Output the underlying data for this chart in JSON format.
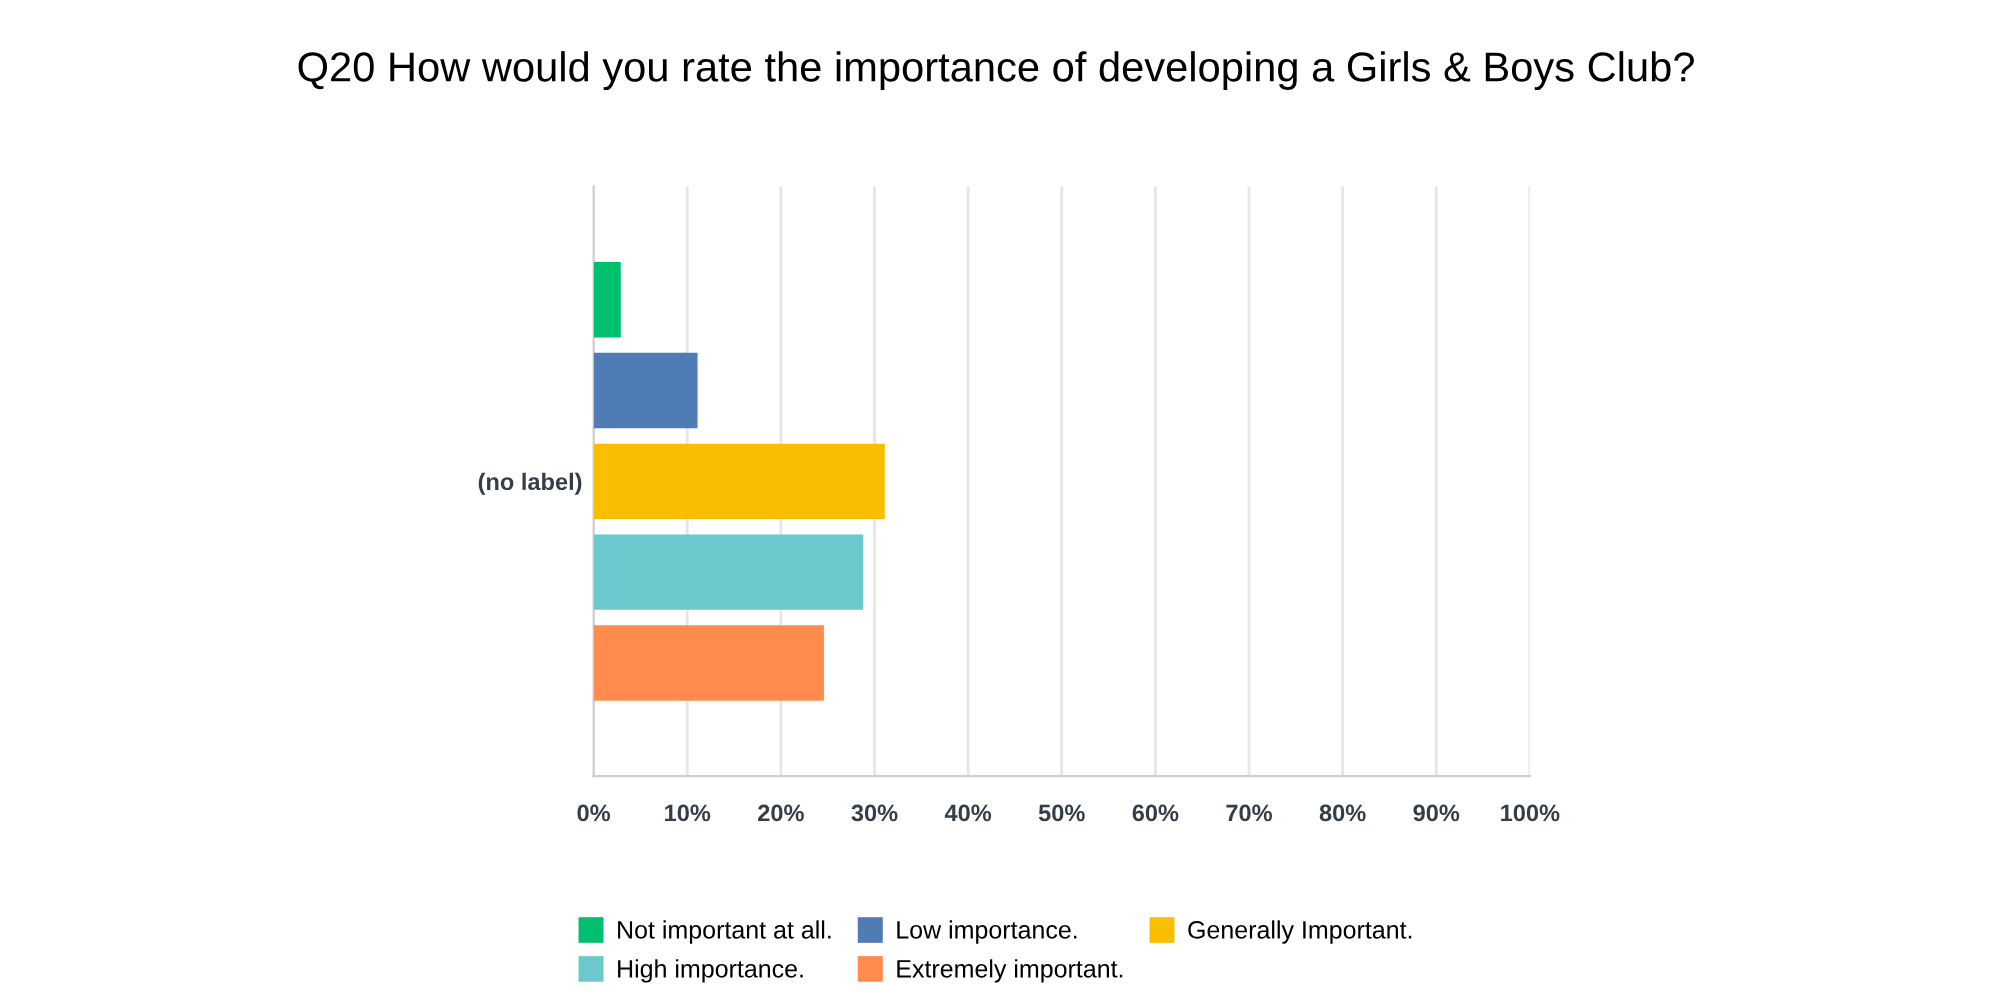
{
  "chart_data": {
    "type": "bar",
    "orientation": "horizontal",
    "title": "Q20 How would you rate the importance of developing a Girls & Boys Club?",
    "categories": [
      "(no label)"
    ],
    "series": [
      {
        "name": "Not important at all.",
        "color": "#00bf6f",
        "values": [
          2.9
        ]
      },
      {
        "name": "Low importance.",
        "color": "#507cb6",
        "values": [
          11.1
        ]
      },
      {
        "name": "Generally Important.",
        "color": "#f9be00",
        "values": [
          31.1
        ]
      },
      {
        "name": "High importance.",
        "color": "#6bc8cd",
        "values": [
          28.8
        ]
      },
      {
        "name": "Extremely important.",
        "color": "#ff8b4f",
        "values": [
          24.6
        ]
      }
    ],
    "xlim": [
      0,
      100
    ],
    "xticks": [
      {
        "value": 0,
        "label": "0%"
      },
      {
        "value": 10,
        "label": "10%"
      },
      {
        "value": 20,
        "label": "20%"
      },
      {
        "value": 30,
        "label": "30%"
      },
      {
        "value": 40,
        "label": "40%"
      },
      {
        "value": 50,
        "label": "50%"
      },
      {
        "value": 60,
        "label": "60%"
      },
      {
        "value": 70,
        "label": "70%"
      },
      {
        "value": 80,
        "label": "80%"
      },
      {
        "value": 90,
        "label": "90%"
      },
      {
        "value": 100,
        "label": "100%"
      }
    ],
    "grid": "x",
    "legend": "bottom"
  }
}
